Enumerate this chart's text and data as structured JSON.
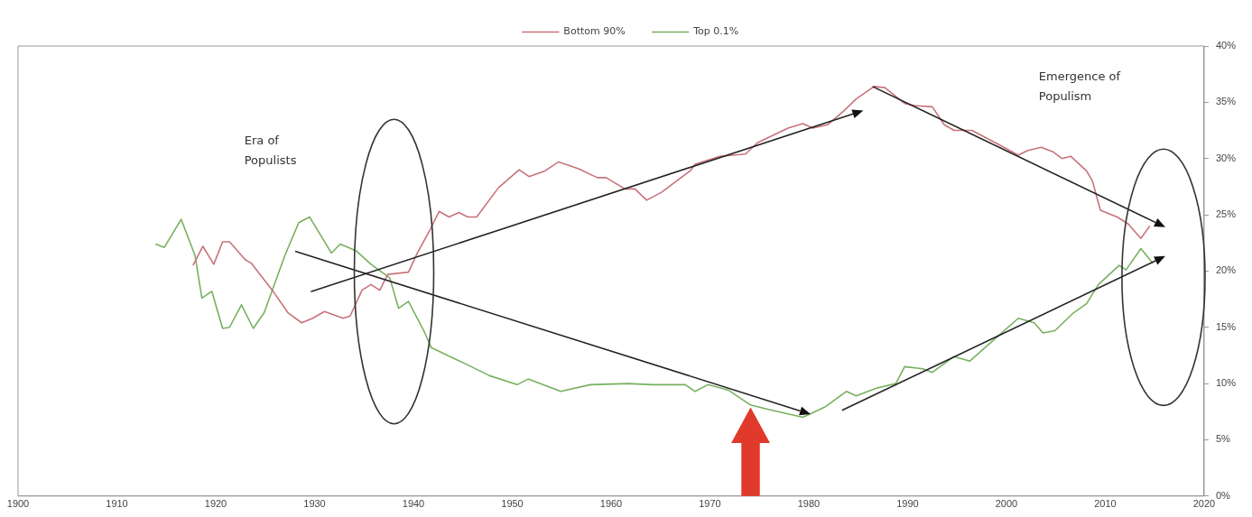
{
  "chart_data": {
    "type": "line",
    "legend": "top",
    "marker": "none",
    "line_style": "solid",
    "grid": false,
    "xlim": [
      1900,
      2020
    ],
    "xticks": [
      1900,
      1910,
      1920,
      1930,
      1940,
      1950,
      1960,
      1970,
      1980,
      1990,
      2000,
      2010,
      2020
    ],
    "ylim": [
      0,
      40
    ],
    "yticks": [
      {
        "value": 0,
        "label": "0%"
      },
      {
        "value": 5,
        "label": "5%"
      },
      {
        "value": 10,
        "label": "10%"
      },
      {
        "value": 15,
        "label": "15%"
      },
      {
        "value": 20,
        "label": "20%"
      },
      {
        "value": 25,
        "label": "25%"
      },
      {
        "value": 30,
        "label": "30%"
      },
      {
        "value": 35,
        "label": "35%"
      },
      {
        "value": 40,
        "label": "40%"
      }
    ],
    "annotations": [
      "Era of Populists",
      "Emergence of Populism"
    ],
    "series": [
      {
        "name": "Bottom 90%",
        "color": "#c8737b",
        "x": [
          1917.7,
          1918.7,
          1919.8,
          1920.7,
          1921.4,
          1923,
          1923.6,
          1925.8,
          1927.3,
          1928.7,
          1929.8,
          1931,
          1932.9,
          1933.6,
          1934.8,
          1935.7,
          1936.6,
          1937.4,
          1939.5,
          1940.4,
          1941.7,
          1942.6,
          1943.6,
          1944.6,
          1945.5,
          1946.4,
          1948.6,
          1950.7,
          1951.7,
          1953.3,
          1954.7,
          1956.7,
          1958.6,
          1959.5,
          1961.4,
          1962.4,
          1963.6,
          1965.1,
          1968,
          1968.5,
          1971,
          1973.6,
          1974.8,
          1977.9,
          1979.4,
          1980.4,
          1981.9,
          1983.5,
          1984.8,
          1986.6,
          1987.7,
          1989.7,
          1990.7,
          1992.5,
          1993.7,
          1994.7,
          1996.5,
          1999.1,
          2001.2,
          2002.1,
          2003.5,
          2004.7,
          2005.6,
          2006.5,
          2008.1,
          2008.7,
          2009.5,
          2011.2,
          2012.3,
          2013.6,
          2014.5
        ],
        "values": [
          20.5,
          22.2,
          20.6,
          22.6,
          22.6,
          21,
          20.7,
          18.2,
          16.3,
          15.4,
          15.8,
          16.4,
          15.8,
          16,
          18.3,
          18.8,
          18.3,
          19.7,
          19.9,
          21.6,
          23.7,
          25.3,
          24.8,
          25.2,
          24.8,
          24.8,
          27.4,
          29,
          28.4,
          28.9,
          29.7,
          29.1,
          28.3,
          28.3,
          27.3,
          27.3,
          26.3,
          27,
          28.9,
          29.5,
          30.2,
          30.4,
          31.4,
          32.7,
          33.1,
          32.7,
          33,
          34.2,
          35.3,
          36.4,
          36.3,
          34.9,
          34.7,
          34.6,
          33,
          32.5,
          32.5,
          31.3,
          30.3,
          30.7,
          31,
          30.6,
          30,
          30.2,
          28.9,
          28,
          25.4,
          24.8,
          24.2,
          22.9,
          24
        ]
      },
      {
        "name": "Top 0.1%",
        "color": "#78b060",
        "x": [
          1913.9,
          1914.8,
          1916.5,
          1917.9,
          1918.6,
          1919.6,
          1920.7,
          1921.4,
          1922.6,
          1923.8,
          1924.9,
          1927,
          1928.4,
          1929.5,
          1931.7,
          1932.6,
          1934.2,
          1935.7,
          1937.6,
          1938.5,
          1939.5,
          1941.1,
          1941.8,
          1945.4,
          1947.7,
          1950.5,
          1951.6,
          1954.9,
          1957.9,
          1961.7,
          1964.2,
          1967.5,
          1968.5,
          1969.8,
          1971.9,
          1974.1,
          1975.9,
          1977.9,
          1979.4,
          1981.6,
          1983.8,
          1984.8,
          1986.9,
          1988.8,
          1989.7,
          1991.6,
          1992.5,
          1994.7,
          1996.3,
          1998.1,
          2001.2,
          2002.8,
          2003.7,
          2004.9,
          2006.8,
          2008.1,
          2009.3,
          2011.4,
          2012.1,
          2013.6,
          2014.8
        ],
        "values": [
          22.4,
          22.1,
          24.6,
          21.4,
          17.6,
          18.2,
          14.9,
          15,
          17,
          14.9,
          16.3,
          21.4,
          24.3,
          24.8,
          21.6,
          22.4,
          21.8,
          20.6,
          19.4,
          16.7,
          17.3,
          14.6,
          13.2,
          11.7,
          10.7,
          9.9,
          10.4,
          9.3,
          9.9,
          10,
          9.9,
          9.9,
          9.3,
          9.9,
          9.4,
          8.1,
          7.7,
          7.3,
          7,
          7.9,
          9.3,
          8.9,
          9.6,
          10,
          11.5,
          11.3,
          11,
          12.4,
          12,
          13.4,
          15.8,
          15.4,
          14.5,
          14.7,
          16.3,
          17.1,
          18.8,
          20.5,
          20.1,
          22,
          20.7
        ]
      }
    ]
  }
}
